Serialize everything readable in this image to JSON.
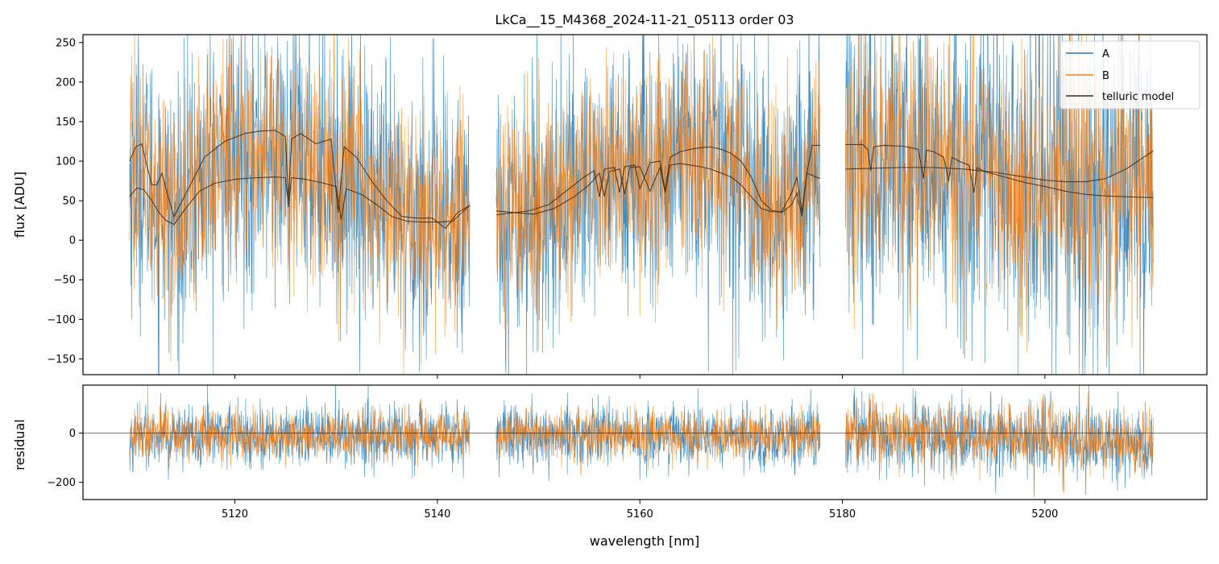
{
  "chart_data": [
    {
      "panel": "top",
      "type": "line",
      "title": "LkCa__15_M4368_2024-11-21_05113  order 03",
      "xlabel": "",
      "ylabel": "flux [ADU]",
      "xlim": [
        5105,
        5216
      ],
      "ylim": [
        -170,
        260
      ],
      "x_ticks": [
        5120,
        5140,
        5160,
        5180,
        5200
      ],
      "y_ticks": [
        -150,
        -100,
        -50,
        0,
        50,
        100,
        150,
        200,
        250
      ],
      "y_tick_labels": [
        "−150",
        "−100",
        "−50",
        "0",
        "50",
        "100",
        "150",
        "200",
        "250"
      ],
      "legend_position": "top-right",
      "segments": [
        [
          5109.6,
          5143.2
        ],
        [
          5145.8,
          5177.8
        ],
        [
          5180.3,
          5210.7
        ]
      ],
      "series": [
        {
          "name": "A",
          "color": "#1f77b4",
          "noise_amplitude": 95,
          "points_per_nm": 30
        },
        {
          "name": "B",
          "color": "#ff7f0e",
          "noise_amplitude": 75,
          "points_per_nm": 30
        }
      ],
      "telluric_model": {
        "name": "telluric model",
        "color": "#3a2a1a",
        "line_1": {
          "x": [
            5109.6,
            5110.2,
            5110.8,
            5111.3,
            5111.8,
            5112.3,
            5112.8,
            5113.3,
            5114.0,
            5115.0,
            5117.0,
            5119.0,
            5121.0,
            5122.5,
            5124.0,
            5125.0,
            5125.3,
            5125.6,
            5126.5,
            5128.0,
            5129.5,
            5130.2,
            5130.8,
            5132.0,
            5133.5,
            5135.0,
            5136.5,
            5138.0,
            5139.5,
            5140.8,
            5142.0,
            5143.2
          ],
          "y": [
            100,
            118,
            122,
            95,
            70,
            70,
            85,
            60,
            30,
            55,
            105,
            125,
            135,
            138,
            139,
            131,
            50,
            128,
            135,
            122,
            128,
            35,
            118,
            105,
            75,
            50,
            30,
            28,
            28,
            15,
            35,
            44
          ]
        },
        "line_2": {
          "x": [
            5109.6,
            5110.3,
            5111.0,
            5111.8,
            5112.5,
            5113.2,
            5114.0,
            5115.0,
            5116.5,
            5118.0,
            5120.0,
            5122.0,
            5124.0,
            5125.0,
            5125.3,
            5125.6,
            5127.0,
            5128.5,
            5130.0,
            5130.5,
            5131.0,
            5132.5,
            5134.0,
            5135.5,
            5137.0,
            5138.5,
            5140.0,
            5141.5,
            5143.2
          ],
          "y": [
            55,
            66,
            64,
            50,
            35,
            25,
            20,
            38,
            62,
            72,
            77,
            79,
            80,
            79,
            42,
            79,
            77,
            73,
            68,
            26,
            65,
            58,
            45,
            30,
            24,
            23,
            23,
            24,
            44
          ]
        },
        "line_3": {
          "x": [
            5145.8,
            5147.0,
            5149.0,
            5151.0,
            5153.0,
            5154.5,
            5155.5,
            5156.0,
            5156.5,
            5157.5,
            5158.0,
            5158.5,
            5159.5,
            5160.0,
            5161.0,
            5162.0,
            5162.5,
            5163.0,
            5164.0,
            5165.0,
            5166.0,
            5167.0,
            5168.0,
            5169.0,
            5170.0,
            5171.0,
            5172.0,
            5173.0,
            5174.0,
            5175.0,
            5175.5,
            5176.0,
            5176.5,
            5177.0,
            5177.8
          ],
          "y": [
            32,
            34,
            37,
            45,
            65,
            80,
            88,
            55,
            90,
            92,
            60,
            93,
            95,
            65,
            98,
            100,
            62,
            105,
            112,
            115,
            117,
            118,
            115,
            110,
            100,
            80,
            50,
            38,
            35,
            45,
            60,
            30,
            85,
            120,
            120
          ]
        },
        "line_4": {
          "x": [
            5145.8,
            5147.5,
            5149.5,
            5151.5,
            5153.5,
            5155.0,
            5156.0,
            5156.5,
            5157.0,
            5158.0,
            5158.5,
            5159.0,
            5160.0,
            5161.0,
            5162.0,
            5162.5,
            5163.0,
            5164.0,
            5165.0,
            5166.0,
            5167.0,
            5168.0,
            5169.0,
            5170.0,
            5171.0,
            5172.0,
            5173.0,
            5174.0,
            5175.0,
            5175.5,
            5176.0,
            5176.5,
            5177.0,
            5177.8
          ],
          "y": [
            37,
            35,
            33,
            40,
            55,
            70,
            85,
            55,
            87,
            90,
            58,
            92,
            93,
            62,
            92,
            60,
            95,
            97,
            95,
            93,
            90,
            85,
            80,
            70,
            55,
            40,
            36,
            36,
            60,
            80,
            35,
            85,
            82,
            78
          ]
        },
        "line_5": {
          "x": [
            5180.3,
            5182.0,
            5182.5,
            5182.8,
            5183.1,
            5184.0,
            5186.0,
            5187.5,
            5188.0,
            5188.3,
            5189.0,
            5190.0,
            5190.5,
            5190.8,
            5191.5,
            5192.5,
            5193.0,
            5193.3,
            5194.0,
            5196.0,
            5198.0,
            5200.0,
            5202.0,
            5204.0,
            5206.0,
            5208.0,
            5210.7
          ],
          "y": [
            121,
            121,
            115,
            88,
            118,
            120,
            119,
            115,
            78,
            114,
            112,
            105,
            75,
            105,
            100,
            95,
            60,
            92,
            87,
            80,
            73,
            68,
            62,
            58,
            56,
            55,
            54
          ]
        },
        "line_6": {
          "x": [
            5180.3,
            5183.0,
            5186.0,
            5189.0,
            5192.0,
            5195.0,
            5198.0,
            5200.0,
            5202.0,
            5204.0,
            5206.0,
            5208.0,
            5210.7
          ],
          "y": [
            90,
            91,
            92,
            92,
            90,
            86,
            80,
            76,
            74,
            74,
            78,
            90,
            113
          ]
        }
      }
    },
    {
      "panel": "bottom",
      "type": "line",
      "title": "",
      "xlabel": "wavelength [nm]",
      "ylabel": "residual",
      "xlim": [
        5105,
        5216
      ],
      "ylim": [
        -270,
        195
      ],
      "x_ticks": [
        5120,
        5140,
        5160,
        5180,
        5200
      ],
      "x_tick_labels": [
        "5120",
        "5140",
        "5160",
        "5180",
        "5200"
      ],
      "y_ticks": [
        -200,
        0
      ],
      "y_tick_labels": [
        "−200",
        "0"
      ],
      "reference_line_y": 0,
      "segments": [
        [
          5109.6,
          5143.2
        ],
        [
          5145.8,
          5177.8
        ],
        [
          5180.3,
          5210.7
        ]
      ],
      "series": [
        {
          "name": "A",
          "color": "#1f77b4",
          "noise_amplitude": 85,
          "points_per_nm": 30
        },
        {
          "name": "B",
          "color": "#ff7f0e",
          "noise_amplitude": 65,
          "points_per_nm": 30
        }
      ]
    }
  ]
}
